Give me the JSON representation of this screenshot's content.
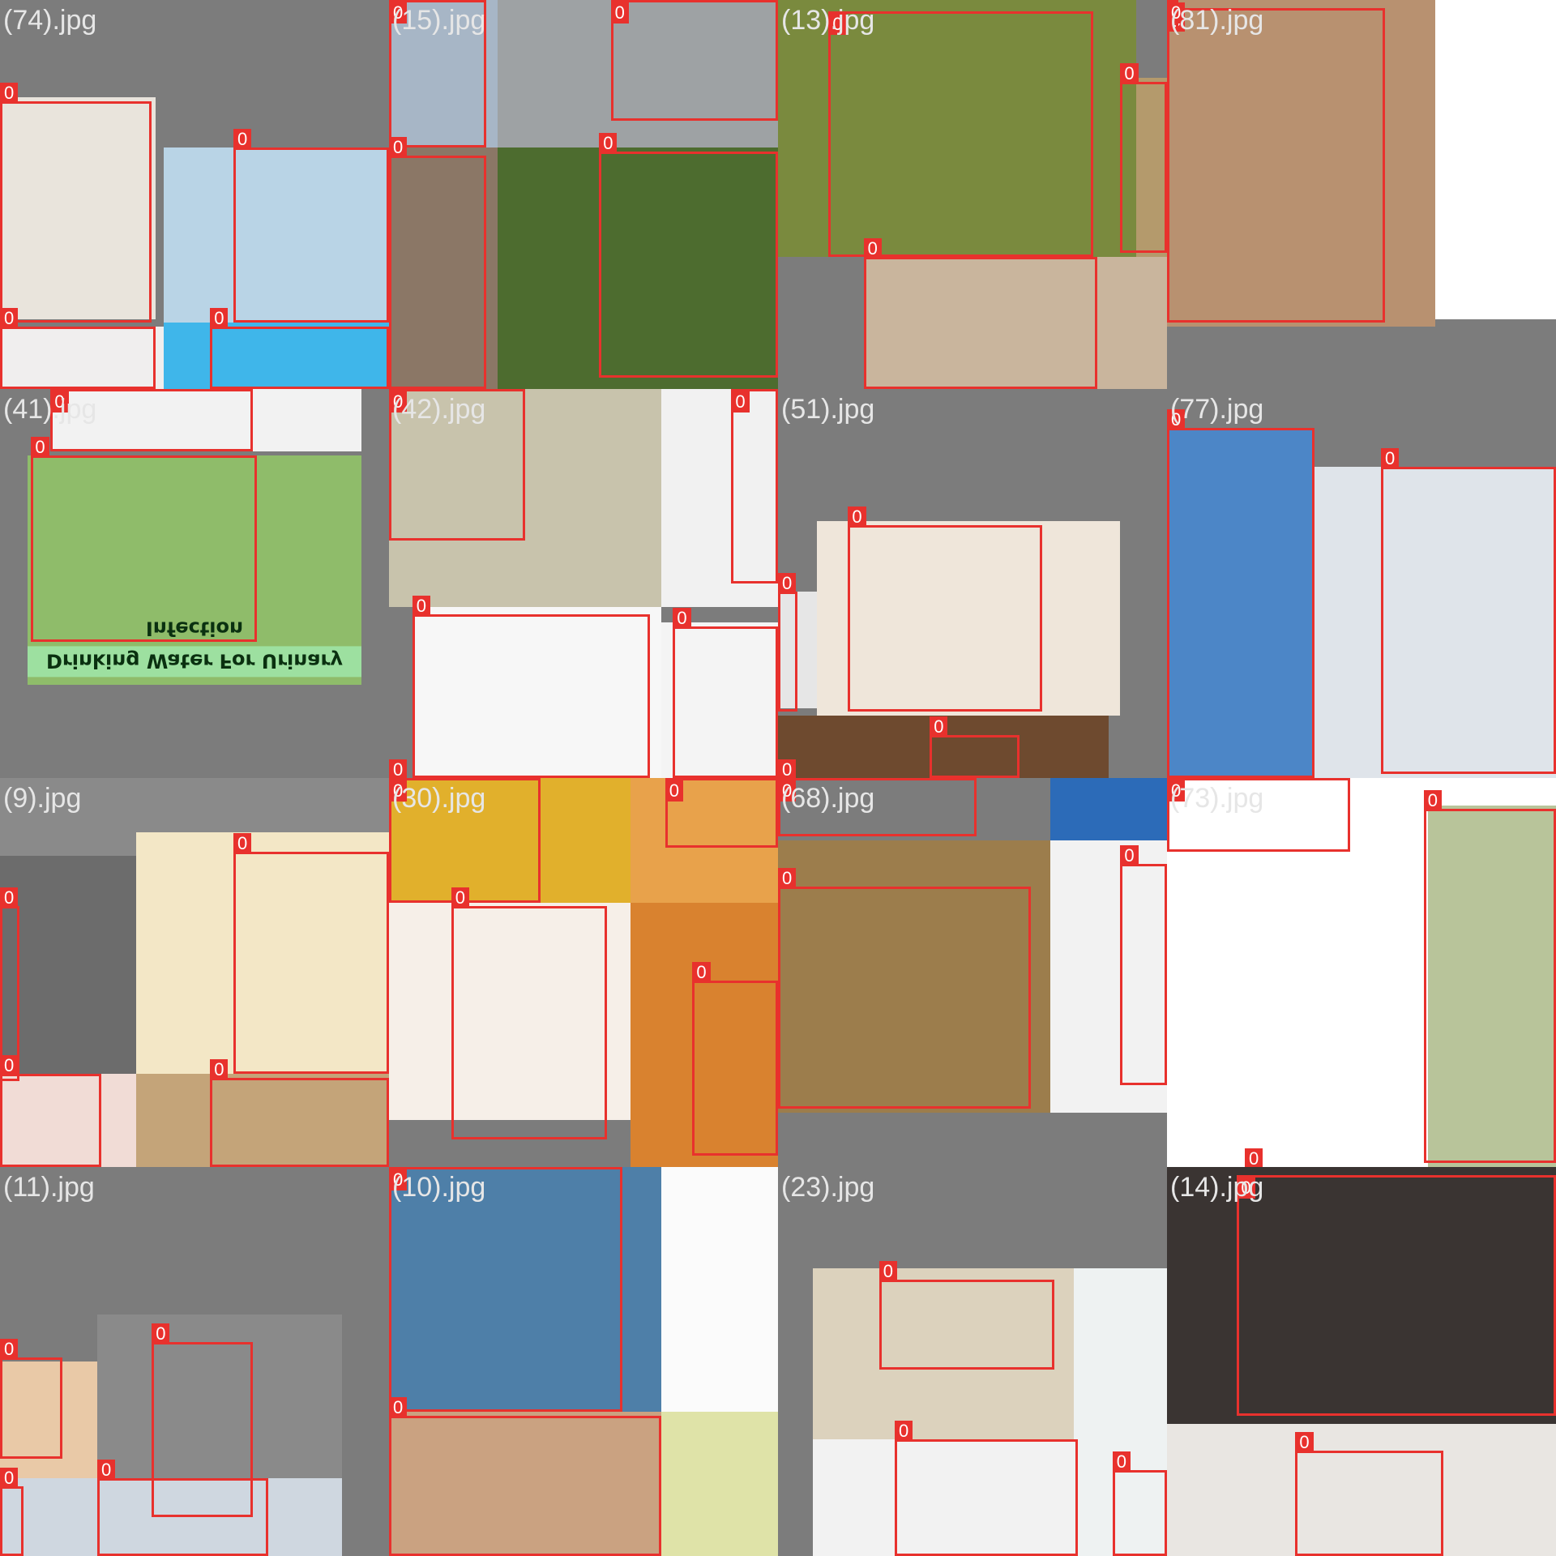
{
  "detection_label": "0",
  "colors": {
    "background": "#7a7a7a",
    "box": "#e8312d"
  },
  "tiles": [
    {
      "name": "(74).jpg",
      "col": 0,
      "row": 0,
      "bg": "#7c7c7c",
      "photos": [
        [
          0,
          0.25,
          0.4,
          0.57,
          "#e9e4dc"
        ],
        [
          0.42,
          0.38,
          0.58,
          0.45,
          "#b9d4e6"
        ],
        [
          0,
          0.84,
          0.42,
          0.16,
          "#f0eeee"
        ],
        [
          0.42,
          0.83,
          0.58,
          0.17,
          "#3fb6ea"
        ]
      ],
      "boxes": [
        [
          0,
          0.26,
          0.39,
          0.57
        ],
        [
          0.6,
          0.38,
          0.4,
          0.45
        ],
        [
          0,
          0.84,
          0.4,
          0.16
        ],
        [
          0.54,
          0.84,
          0.46,
          0.16
        ]
      ]
    },
    {
      "name": "(15).jpg",
      "col": 1,
      "row": 0,
      "bg": "#7c7c7c",
      "photos": [
        [
          0,
          0,
          0.28,
          0.38,
          "#a7b6c6"
        ],
        [
          0.28,
          0,
          0.72,
          0.38,
          "#9ea2a4"
        ],
        [
          0,
          0.38,
          0.28,
          0.62,
          "#8b7766"
        ],
        [
          0.28,
          0.38,
          0.72,
          0.62,
          "#4d6c2f"
        ]
      ],
      "boxes": [
        [
          0,
          0,
          0.25,
          0.38
        ],
        [
          0.57,
          0,
          0.43,
          0.31
        ],
        [
          0,
          0.4,
          0.25,
          0.6
        ],
        [
          0.54,
          0.39,
          0.46,
          0.58
        ]
      ]
    },
    {
      "name": "(13).jpg",
      "col": 2,
      "row": 0,
      "bg": "#7c7c7c",
      "photos": [
        [
          0,
          0,
          0.92,
          0.66,
          "#7a8a3e"
        ],
        [
          0.92,
          0.2,
          0.08,
          0.46,
          "#b49a6c"
        ],
        [
          0.22,
          0.66,
          0.78,
          0.34,
          "#c9b59d"
        ]
      ],
      "boxes": [
        [
          0.13,
          0.03,
          0.68,
          0.63
        ],
        [
          0.88,
          0.21,
          0.12,
          0.44
        ],
        [
          0.22,
          0.66,
          0.6,
          0.34
        ]
      ]
    },
    {
      "name": "(81).jpg",
      "col": 3,
      "row": 0,
      "bg": "#7c7c7c",
      "photos": [
        [
          0,
          0,
          0.69,
          0.84,
          "#b89170"
        ],
        [
          0.69,
          0,
          0.31,
          0.82,
          "#ffffff"
        ]
      ],
      "boxes": [
        [
          0,
          0.02,
          0.56,
          0.81
        ],
        [
          0,
          0,
          0.03,
          0.08
        ]
      ]
    },
    {
      "name": "(41).jpg",
      "col": 0,
      "row": 1,
      "bg": "#7c7c7c",
      "photos": [
        [
          0.13,
          0,
          0.8,
          0.16,
          "#f2f2f2"
        ],
        [
          0.07,
          0.17,
          0.86,
          0.59,
          "#8fbc6a"
        ]
      ],
      "boxes": [
        [
          0.13,
          0,
          0.52,
          0.16
        ],
        [
          0.08,
          0.17,
          0.58,
          0.48
        ]
      ],
      "caption": [
        0.07,
        0.66,
        0.86,
        0.08,
        "Drinking Water For Urinary Infection"
      ]
    },
    {
      "name": "(42).jpg",
      "col": 1,
      "row": 1,
      "bg": "#7c7c7c",
      "photos": [
        [
          0,
          0,
          0.7,
          0.56,
          "#c8c3ac"
        ],
        [
          0.7,
          0,
          0.3,
          0.56,
          "#f1f1f1"
        ],
        [
          0.06,
          0.56,
          0.64,
          0.44,
          "#f7f7f7"
        ],
        [
          0.7,
          0.6,
          0.3,
          0.4,
          "#f4f4f4"
        ]
      ],
      "boxes": [
        [
          0,
          0,
          0.35,
          0.39
        ],
        [
          0.88,
          0,
          0.12,
          0.5
        ],
        [
          0.06,
          0.58,
          0.61,
          0.42
        ],
        [
          0.73,
          0.61,
          0.27,
          0.39
        ],
        [
          0,
          1,
          0.05,
          0
        ]
      ]
    },
    {
      "name": "(51).jpg",
      "col": 2,
      "row": 1,
      "bg": "#7c7c7c",
      "photos": [
        [
          0.1,
          0.34,
          0.78,
          0.5,
          "#efe6da"
        ],
        [
          0,
          0.52,
          0.1,
          0.3,
          "#e6e6e6"
        ],
        [
          0,
          0.84,
          0.85,
          0.16,
          "#6e4a2f"
        ]
      ],
      "boxes": [
        [
          0.18,
          0.35,
          0.5,
          0.48
        ],
        [
          0,
          0.52,
          0.05,
          0.31
        ],
        [
          0.39,
          0.89,
          0.23,
          0.11
        ],
        [
          0,
          1,
          0.04,
          0
        ]
      ]
    },
    {
      "name": "(77).jpg",
      "col": 3,
      "row": 1,
      "bg": "#7c7c7c",
      "photos": [
        [
          0,
          0.1,
          0.38,
          0.9,
          "#4c86c7"
        ],
        [
          0.38,
          0.2,
          0.62,
          0.8,
          "#dfe4ea"
        ]
      ],
      "boxes": [
        [
          0,
          0.1,
          0.38,
          0.9
        ],
        [
          0.55,
          0.2,
          0.45,
          0.79
        ]
      ]
    },
    {
      "name": "(9).jpg",
      "col": 0,
      "row": 2,
      "bg": "#8a8a8a",
      "photos": [
        [
          0,
          0.2,
          0.35,
          0.56,
          "#6c6c6c"
        ],
        [
          0.35,
          0.14,
          0.65,
          0.63,
          "#f3e7c6"
        ],
        [
          0,
          0.76,
          0.35,
          0.24,
          "#f1dcd6"
        ],
        [
          0.35,
          0.76,
          0.65,
          0.24,
          "#c4a479"
        ]
      ],
      "boxes": [
        [
          0.6,
          0.19,
          0.4,
          0.57
        ],
        [
          0,
          0.33,
          0.05,
          0.45
        ],
        [
          0,
          0.76,
          0.26,
          0.24
        ],
        [
          0.54,
          0.77,
          0.46,
          0.23
        ]
      ]
    },
    {
      "name": "(30).jpg",
      "col": 1,
      "row": 2,
      "bg": "#7c7c7c",
      "photos": [
        [
          0,
          0,
          0.62,
          0.32,
          "#e1b02c"
        ],
        [
          0.62,
          0,
          0.38,
          0.32,
          "#e8a24b"
        ],
        [
          0,
          0.32,
          0.62,
          0.56,
          "#f6efe8"
        ],
        [
          0.62,
          0.32,
          0.38,
          0.68,
          "#d9822f"
        ]
      ],
      "boxes": [
        [
          0,
          0,
          0.39,
          0.32
        ],
        [
          0.71,
          0,
          0.29,
          0.18
        ],
        [
          0.16,
          0.33,
          0.4,
          0.6
        ],
        [
          0.78,
          0.52,
          0.22,
          0.45
        ]
      ]
    },
    {
      "name": "(68).jpg",
      "col": 2,
      "row": 2,
      "bg": "#7c7c7c",
      "photos": [
        [
          0,
          0.16,
          0.7,
          0.7,
          "#9c7d4c"
        ],
        [
          0.7,
          0,
          0.3,
          0.16,
          "#2c6bb8"
        ],
        [
          0.7,
          0.16,
          0.3,
          0.7,
          "#f2f2f2"
        ]
      ],
      "boxes": [
        [
          0,
          0,
          0.51,
          0.15
        ],
        [
          0,
          0.28,
          0.65,
          0.57
        ],
        [
          0.88,
          0.22,
          0.12,
          0.57
        ]
      ]
    },
    {
      "name": "(73).jpg",
      "col": 3,
      "row": 2,
      "bg": "#ffffff",
      "photos": [
        [
          0.67,
          0.07,
          0.33,
          0.93,
          "#b8c49a"
        ]
      ],
      "boxes": [
        [
          0,
          0,
          0.47,
          0.19
        ],
        [
          0.66,
          0.08,
          0.34,
          0.91
        ],
        [
          0.2,
          1,
          0.06,
          0
        ]
      ]
    },
    {
      "name": "(11).jpg",
      "col": 0,
      "row": 3,
      "bg": "#7c7c7c",
      "photos": [
        [
          0.25,
          0.38,
          0.63,
          0.5,
          "#8a8a8a"
        ],
        [
          0,
          0.5,
          0.25,
          0.38,
          "#e9c9a7"
        ],
        [
          0,
          0.8,
          0.88,
          0.2,
          "#cfd7e0"
        ]
      ],
      "boxes": [
        [
          0,
          0.49,
          0.16,
          0.26
        ],
        [
          0.39,
          0.45,
          0.26,
          0.45
        ],
        [
          0,
          0.82,
          0.06,
          0.18
        ],
        [
          0.25,
          0.8,
          0.44,
          0.2
        ]
      ]
    },
    {
      "name": "(10).jpg",
      "col": 1,
      "row": 3,
      "bg": "#7c7c7c",
      "photos": [
        [
          0,
          0,
          0.7,
          0.63,
          "#4e7fa8"
        ],
        [
          0.7,
          0,
          0.3,
          0.63,
          "#fbfbfb"
        ],
        [
          0,
          0.63,
          0.7,
          0.37,
          "#caa281"
        ],
        [
          0.7,
          0.63,
          0.3,
          0.37,
          "#dfe3a8"
        ]
      ],
      "boxes": [
        [
          0,
          0,
          0.6,
          0.63
        ],
        [
          0,
          0.64,
          0.7,
          0.36
        ]
      ]
    },
    {
      "name": "(23).jpg",
      "col": 2,
      "row": 3,
      "bg": "#7c7c7c",
      "photos": [
        [
          0.09,
          0.26,
          0.67,
          0.44,
          "#dcd2bd"
        ],
        [
          0.09,
          0.7,
          0.67,
          0.3,
          "#f2f2f2"
        ],
        [
          0.76,
          0.26,
          0.24,
          0.74,
          "#eef2f2"
        ]
      ],
      "boxes": [
        [
          0.26,
          0.29,
          0.45,
          0.23
        ],
        [
          0.3,
          0.7,
          0.47,
          0.3
        ],
        [
          0.86,
          0.78,
          0.14,
          0.22
        ]
      ]
    },
    {
      "name": "(14).jpg",
      "col": 3,
      "row": 3,
      "bg": "#1e1e1e",
      "photos": [
        [
          0,
          0,
          1,
          0.66,
          "#3a3432"
        ],
        [
          0,
          0.66,
          1,
          0.34,
          "#e9e6e2"
        ]
      ],
      "boxes": [
        [
          0.18,
          0.02,
          0.82,
          0.62
        ],
        [
          0.33,
          0.73,
          0.38,
          0.27
        ]
      ]
    }
  ]
}
